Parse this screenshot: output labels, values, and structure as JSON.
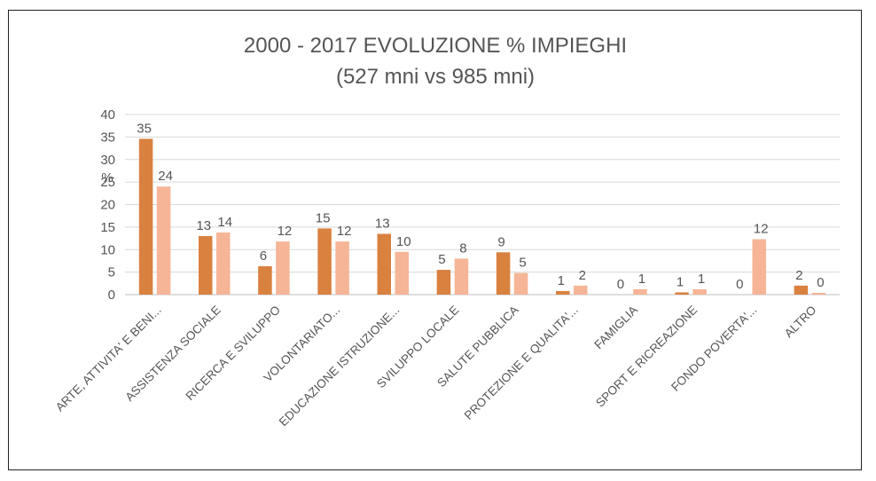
{
  "chart_data": {
    "type": "bar",
    "title": "2000 - 2017 EVOLUZIONE % IMPIEGHI",
    "subtitle": "(527 mni vs 985 mni)",
    "xlabel": "",
    "ylabel": "%",
    "ylim": [
      0,
      40
    ],
    "yticks": [
      0,
      5,
      10,
      15,
      20,
      25,
      30,
      35,
      40
    ],
    "grid": true,
    "categories": [
      "ARTE, ATTIVITA' E BENI...",
      "ASSISTENZA SOCIALE",
      "RICERCA E SVILUPPO",
      "VOLONTARIATO...",
      "EDUCAZIONE ISTRUZIONE...",
      "SVILUPPO LOCALE",
      "SALUTE PUBBLICA",
      "PROTEZIONE E QUALITA'...",
      "FAMIGLIA",
      "SPORT E RICREAZIONE",
      "FONDO POVERTA'...",
      "ALTRO"
    ],
    "series": [
      {
        "values": [
          34.6,
          13.0,
          6.3,
          14.7,
          13.5,
          5.5,
          9.4,
          0.8,
          0.0,
          0.5,
          0.0,
          2.0
        ],
        "labels": [
          "35",
          "13",
          "6",
          "15",
          "13",
          "5",
          "9",
          "1",
          "0",
          "1",
          "0",
          "2"
        ],
        "color": "#D9813F"
      },
      {
        "values": [
          24.0,
          13.8,
          11.8,
          11.8,
          9.5,
          8.0,
          4.8,
          2.0,
          1.2,
          1.2,
          12.3,
          0.4
        ],
        "labels": [
          "24",
          "14",
          "12",
          "12",
          "10",
          "8",
          "5",
          "2",
          "1",
          "1",
          "12",
          "0"
        ],
        "color": "#F6B596"
      }
    ]
  }
}
